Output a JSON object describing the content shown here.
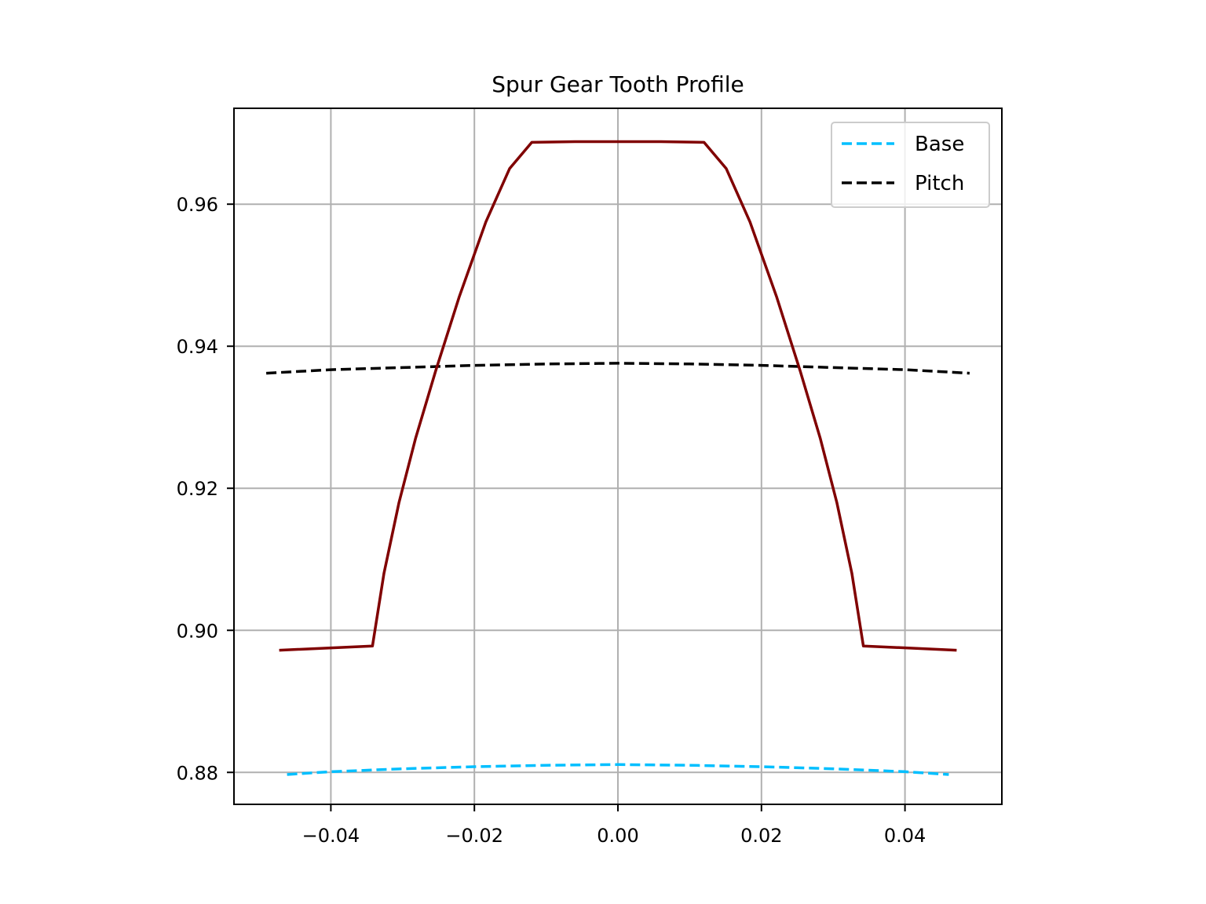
{
  "chart_data": {
    "type": "line",
    "title": "Spur Gear Tooth Profile",
    "xlabel": "",
    "ylabel": "",
    "xlim": [
      -0.0535,
      0.0535
    ],
    "ylim": [
      0.8755,
      0.9735
    ],
    "xticks": [
      -0.04,
      -0.02,
      0.0,
      0.02,
      0.04
    ],
    "xtick_labels": [
      "−0.04",
      "−0.02",
      "0.00",
      "0.02",
      "0.04"
    ],
    "yticks": [
      0.88,
      0.9,
      0.92,
      0.94,
      0.96
    ],
    "ytick_labels": [
      "0.88",
      "0.90",
      "0.92",
      "0.94",
      "0.96"
    ],
    "grid": true,
    "legend": {
      "placement": "top-right",
      "entries": [
        "Base",
        "Pitch"
      ]
    },
    "series": [
      {
        "name": "Base",
        "style": "dashed",
        "color": "#00bfff",
        "x": [
          -0.0461,
          -0.04,
          -0.03,
          -0.02,
          -0.01,
          0.0,
          0.01,
          0.02,
          0.03,
          0.04,
          0.0461
        ],
        "y": [
          0.8797,
          0.8801,
          0.8805,
          0.8808,
          0.881,
          0.8811,
          0.881,
          0.8808,
          0.8805,
          0.8801,
          0.8797
        ]
      },
      {
        "name": "Pitch",
        "style": "dashed",
        "color": "#000000",
        "x": [
          -0.049,
          -0.04,
          -0.03,
          -0.02,
          -0.01,
          0.0,
          0.01,
          0.02,
          0.03,
          0.04,
          0.049
        ],
        "y": [
          0.9362,
          0.9367,
          0.937,
          0.9373,
          0.9375,
          0.9376,
          0.9375,
          0.9373,
          0.937,
          0.9367,
          0.9362
        ]
      },
      {
        "style": "solid",
        "color": "#800000",
        "x": [
          -0.0472,
          -0.0342,
          -0.0326,
          -0.0305,
          -0.0282,
          -0.0254,
          -0.0221,
          -0.0184,
          -0.0151,
          -0.012,
          -0.006,
          0.0,
          0.006,
          0.012,
          0.0151,
          0.0184,
          0.0221,
          0.0254,
          0.0282,
          0.0305,
          0.0326,
          0.0342,
          0.0472
        ],
        "y": [
          0.8972,
          0.8978,
          0.908,
          0.918,
          0.927,
          0.9365,
          0.947,
          0.9575,
          0.965,
          0.9687,
          0.9688,
          0.9688,
          0.9688,
          0.9687,
          0.965,
          0.9575,
          0.947,
          0.9365,
          0.927,
          0.918,
          0.908,
          0.8978,
          0.8972
        ]
      }
    ]
  }
}
